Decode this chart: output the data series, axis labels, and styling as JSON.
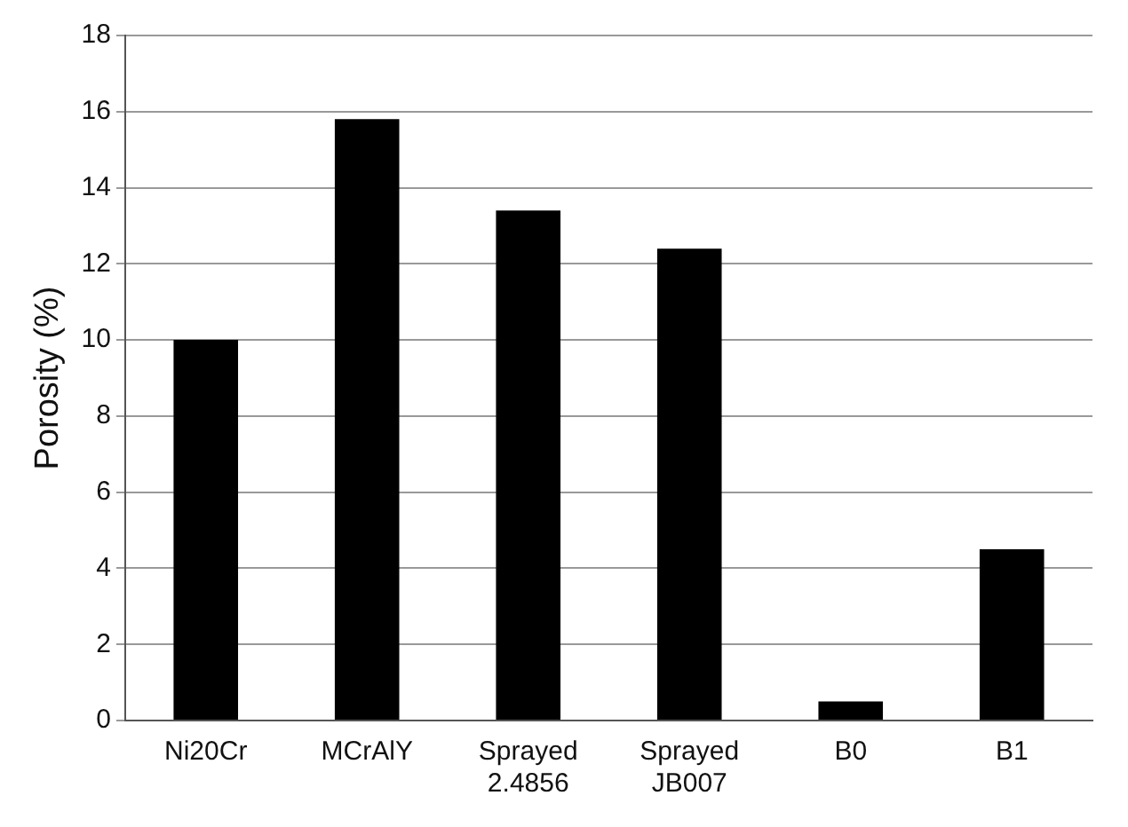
{
  "chart_data": {
    "type": "bar",
    "ylabel": "Porosity (%)",
    "categories": [
      "Ni20Cr",
      "MCrAlY",
      "Sprayed 2.4856",
      "Sprayed JB007",
      "B0",
      "B1"
    ],
    "values": [
      10,
      15.8,
      13.4,
      12.4,
      0.5,
      4.5
    ],
    "color": "#000000",
    "ylim": [
      0,
      18
    ],
    "yticks": [
      0,
      2,
      4,
      6,
      8,
      10,
      12,
      14,
      16,
      18
    ],
    "grid": "y",
    "legend": false
  }
}
